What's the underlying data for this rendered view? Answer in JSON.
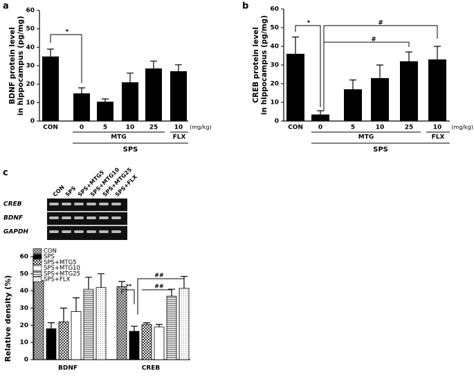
{
  "chart_data": [
    {
      "type": "bar",
      "panel_label": "a",
      "ylabel": [
        "BDNF protein level",
        "in hippocampus (pg/mg)"
      ],
      "categories": [
        "CON",
        "0",
        "5",
        "10",
        "25",
        "10"
      ],
      "values": [
        35,
        15,
        10.5,
        21,
        28.5,
        27
      ],
      "errors": [
        4,
        3,
        1.5,
        5,
        4,
        3.5
      ],
      "color": "#000000",
      "ylim": [
        0,
        60
      ],
      "yticks": [
        0,
        10,
        20,
        30,
        40,
        50,
        60
      ],
      "x_unit": "(mg/kg)",
      "x_groups": [
        "MTG",
        "FLX"
      ],
      "outer_group": "SPS",
      "annotations": [
        "*"
      ]
    },
    {
      "type": "bar",
      "panel_label": "b",
      "ylabel": [
        "CREB protein level",
        "in hippocampus (pg/mg)"
      ],
      "categories": [
        "CON",
        "0",
        "5",
        "10",
        "25",
        "10"
      ],
      "values": [
        36,
        3.5,
        17,
        23,
        32,
        33
      ],
      "errors": [
        9,
        2,
        5,
        7,
        5,
        7
      ],
      "color": "#000000",
      "ylim": [
        0,
        60
      ],
      "yticks": [
        0,
        10,
        20,
        30,
        40,
        50,
        60
      ],
      "x_unit": "(mg/kg)",
      "x_groups": [
        "MTG",
        "FLX"
      ],
      "outer_group": "SPS",
      "annotations": [
        "*",
        "#",
        "#"
      ]
    },
    {
      "type": "gel",
      "panel_label": "c",
      "lanes": [
        "CON",
        "SPS",
        "SPS+MTG5",
        "SPS+MTG10",
        "SPS+MTG25",
        "SPS+FLX"
      ],
      "rows": [
        "CREB",
        "BDNF",
        "GAPDH"
      ]
    },
    {
      "type": "grouped_bar",
      "ylabel": "Relative density (%)",
      "categories": [
        "BDNF",
        "CREB"
      ],
      "series": [
        {
          "name": "CON",
          "color": "#888888",
          "pattern": "crosshatch",
          "values": [
            46,
            42.5
          ],
          "errors": [
            3,
            3
          ]
        },
        {
          "name": "SPS",
          "color": "#000000",
          "pattern": "solid",
          "values": [
            18,
            16.5
          ],
          "errors": [
            3.5,
            3
          ]
        },
        {
          "name": "SPS+MTG5",
          "color": "#555555",
          "pattern": "checker",
          "values": [
            22,
            20.5
          ],
          "errors": [
            8,
            1
          ]
        },
        {
          "name": "SPS+MTG10",
          "color": "#ffffff",
          "pattern": "none",
          "values": [
            28,
            19
          ],
          "errors": [
            8,
            1.5
          ]
        },
        {
          "name": "SPS+MTG25",
          "color": "#555555",
          "pattern": "horizontal",
          "values": [
            41,
            37
          ],
          "errors": [
            7,
            4
          ]
        },
        {
          "name": "SPS+FLX",
          "color": "#bbbbbb",
          "pattern": "dots",
          "values": [
            42,
            41.5
          ],
          "errors": [
            8,
            7
          ]
        }
      ],
      "ylim": [
        0,
        60
      ],
      "yticks": [
        0,
        10,
        20,
        30,
        40,
        50,
        60
      ],
      "annotations": [
        "**",
        "##",
        "##"
      ]
    }
  ]
}
